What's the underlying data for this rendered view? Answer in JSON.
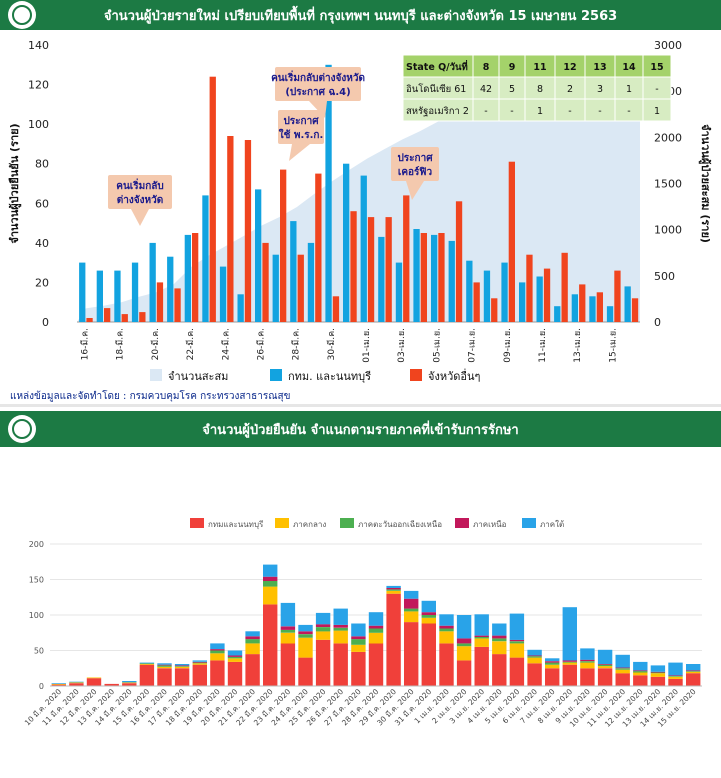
{
  "top": {
    "title": "จำนวนผู้ป่วยรายใหม่ เปรียบเทียบพื้นที่ กรุงเทพฯ นนทบุรี และต่างจังหวัด 15 เมษายน 2563",
    "source": "แหล่งข้อมูลและจัดทำโดย : กรมควบคุมโรค กระทรวงสาธารณสุข",
    "colors": {
      "cumulative": "#dbe8f4",
      "bkk": "#12a3e0",
      "province": "#f0441e",
      "header": "#1c7a44"
    },
    "annotations": [
      {
        "lines": [
          "คนเริ่มกลับ",
          "ต่างจังหวัด"
        ]
      },
      {
        "lines": [
          "ประกาศ",
          "ใช้ พ.ร.ก."
        ]
      },
      {
        "lines": [
          "คนเริ่มกลับต่างจังหวัด",
          "(ประกาศ ฉ.4)"
        ]
      },
      {
        "lines": [
          "ประกาศ",
          "เคอร์ฟิว"
        ]
      }
    ],
    "table": {
      "header": [
        "State Q/วันที่",
        "8",
        "9",
        "11",
        "12",
        "13",
        "14",
        "15"
      ],
      "rows": [
        [
          "อินโดนีเซีย 61",
          "42",
          "5",
          "8",
          "2",
          "3",
          "1",
          "-"
        ],
        [
          "สหรัฐอเมริกา 2",
          "-",
          "-",
          "1",
          "-",
          "-",
          "-",
          "1"
        ]
      ]
    }
  },
  "bottom": {
    "title": "จำนวนผู้ป่วยยืนยัน จำแนกตามรายภาคที่เข้ารับการรักษา",
    "colors": [
      "#f0403a",
      "#ffc000",
      "#4caf50",
      "#c2185b",
      "#29a3e8"
    ]
  },
  "chart_data": [
    {
      "type": "bar",
      "title": "จำนวนผู้ป่วยรายใหม่ เปรียบเทียบพื้นที่ กรุงเทพฯ นนทบุรี และต่างจังหวัด 15 เมษายน 2563",
      "ylabel": "จำนวนผู้ป่วยยืนยัน (ราย)",
      "y2label": "จำนวนผู้ป่วยสะสม (ราย)",
      "ylim": [
        0,
        140
      ],
      "y2lim": [
        0,
        3000
      ],
      "yticks": [
        0,
        20,
        40,
        60,
        80,
        100,
        120,
        140
      ],
      "y2ticks": [
        0,
        500,
        1000,
        1500,
        2000,
        2500,
        3000
      ],
      "tick_labels": [
        "16-มี.ค.",
        "18-มี.ค.",
        "20-มี.ค.",
        "22-มี.ค.",
        "24-มี.ค.",
        "26-มี.ค.",
        "28-มี.ค.",
        "30-มี.ค.",
        "01-เม.ย.",
        "03-เม.ย.",
        "05-เม.ย.",
        "07-เม.ย.",
        "09-เม.ย.",
        "11-เม.ย.",
        "13-เม.ย.",
        "15-เม.ย."
      ],
      "legend": [
        "จำนวนสะสม",
        "กทม. และนนทบุรี",
        "จังหวัดอื่นๆ"
      ],
      "legend_position": "bottom",
      "series": [
        {
          "name": "กทม. และนนทบุรี",
          "values": [
            30,
            26,
            26,
            30,
            40,
            33,
            44,
            64,
            28,
            14,
            67,
            34,
            51,
            40,
            130,
            80,
            74,
            43,
            30,
            47,
            44,
            41,
            31,
            26,
            30,
            20,
            23,
            8,
            14,
            13,
            8,
            18
          ]
        },
        {
          "name": "จังหวัดอื่นๆ",
          "values": [
            2,
            7,
            4,
            5,
            20,
            17,
            45,
            124,
            94,
            92,
            40,
            77,
            34,
            75,
            13,
            56,
            53,
            53,
            64,
            45,
            45,
            61,
            20,
            12,
            81,
            34,
            27,
            35,
            19,
            15,
            26,
            12
          ]
        },
        {
          "name": "จำนวนสะสม",
          "values": [
            147,
            177,
            212,
            272,
            322,
            411,
            599,
            721,
            827,
            934,
            1045,
            1136,
            1245,
            1388,
            1524,
            1651,
            1771,
            1875,
            1978,
            2067,
            2169,
            2220,
            2258,
            2369,
            2423,
            2473,
            2518,
            2551,
            2579,
            2613,
            2643,
            2672
          ]
        }
      ]
    },
    {
      "type": "bar",
      "title": "จำนวนผู้ป่วยยืนยัน จำแนกตามรายภาคที่เข้ารับการรักษา",
      "ylim": [
        0,
        200
      ],
      "yticks": [
        0,
        50,
        100,
        150,
        200
      ],
      "legend": [
        "กทมและนนทบุรี",
        "ภาคกลาง",
        "ภาคตะวันออกเฉียงเหนือ",
        "ภาคเหนือ",
        "ภาคใต้"
      ],
      "legend_position": "top",
      "categories": [
        "10 มี.ค. 2020",
        "11 มี.ค. 2020",
        "12 มี.ค. 2020",
        "13 มี.ค. 2020",
        "14 มี.ค. 2020",
        "15 มี.ค. 2020",
        "16 มี.ค. 2020",
        "17 มี.ค. 2020",
        "18 มี.ค. 2020",
        "19 มี.ค. 2020",
        "20 มี.ค. 2020",
        "21 มี.ค. 2020",
        "22 มี.ค. 2020",
        "23 มี.ค. 2020",
        "24 มี.ค. 2020",
        "25 มี.ค. 2020",
        "26 มี.ค. 2020",
        "27 มี.ค. 2020",
        "28 มี.ค. 2020",
        "29 มี.ค. 2020",
        "30 มี.ค. 2020",
        "31 มี.ค. 2020",
        "1 เม.ย. 2020",
        "2 เม.ย. 2020",
        "3 เม.ย. 2020",
        "4 เม.ย. 2020",
        "5 เม.ย. 2020",
        "6 เม.ย. 2020",
        "7 เม.ย. 2020",
        "8 เม.ย. 2020",
        "9 เม.ย. 2020",
        "10 เม.ย. 2020",
        "11 เม.ย. 2020",
        "12 เม.ย. 2020",
        "13 เม.ย. 2020",
        "14 เม.ย. 2020",
        "15 เม.ย. 2020"
      ],
      "series": [
        {
          "name": "กทมและนนทบุรี",
          "values": [
            2,
            4,
            11,
            3,
            4,
            30,
            25,
            25,
            30,
            36,
            34,
            45,
            115,
            60,
            40,
            65,
            60,
            48,
            60,
            130,
            90,
            88,
            60,
            36,
            55,
            45,
            40,
            32,
            25,
            30,
            25,
            25,
            18,
            15,
            13,
            10,
            18
          ]
        },
        {
          "name": "ภาคกลาง",
          "values": [
            1,
            1,
            1,
            0,
            1,
            1,
            2,
            2,
            2,
            10,
            5,
            15,
            25,
            15,
            28,
            12,
            18,
            10,
            15,
            4,
            15,
            8,
            17,
            20,
            12,
            18,
            20,
            8,
            5,
            3,
            8,
            3,
            5,
            4,
            5,
            3,
            2
          ]
        },
        {
          "name": "ภาคตะวันออกเฉียงเหนือ",
          "values": [
            0,
            0,
            0,
            0,
            0,
            1,
            2,
            1,
            1,
            4,
            2,
            6,
            8,
            4,
            5,
            6,
            4,
            8,
            6,
            2,
            4,
            4,
            4,
            4,
            2,
            4,
            3,
            2,
            3,
            1,
            2,
            2,
            2,
            2,
            1,
            1,
            1
          ]
        },
        {
          "name": "ภาคเหนือ",
          "values": [
            0,
            0,
            0,
            0,
            0,
            0,
            1,
            1,
            1,
            2,
            2,
            4,
            6,
            5,
            4,
            4,
            4,
            4,
            4,
            2,
            14,
            4,
            4,
            7,
            2,
            4,
            2,
            1,
            2,
            2,
            2,
            1,
            1,
            1,
            1,
            1,
            1
          ]
        },
        {
          "name": "ภาคใต้",
          "values": [
            1,
            1,
            0,
            0,
            2,
            1,
            2,
            2,
            2,
            8,
            7,
            7,
            17,
            33,
            9,
            16,
            23,
            18,
            19,
            3,
            11,
            16,
            16,
            33,
            30,
            17,
            37,
            8,
            4,
            75,
            16,
            20,
            18,
            12,
            9,
            18,
            9
          ]
        }
      ]
    }
  ]
}
